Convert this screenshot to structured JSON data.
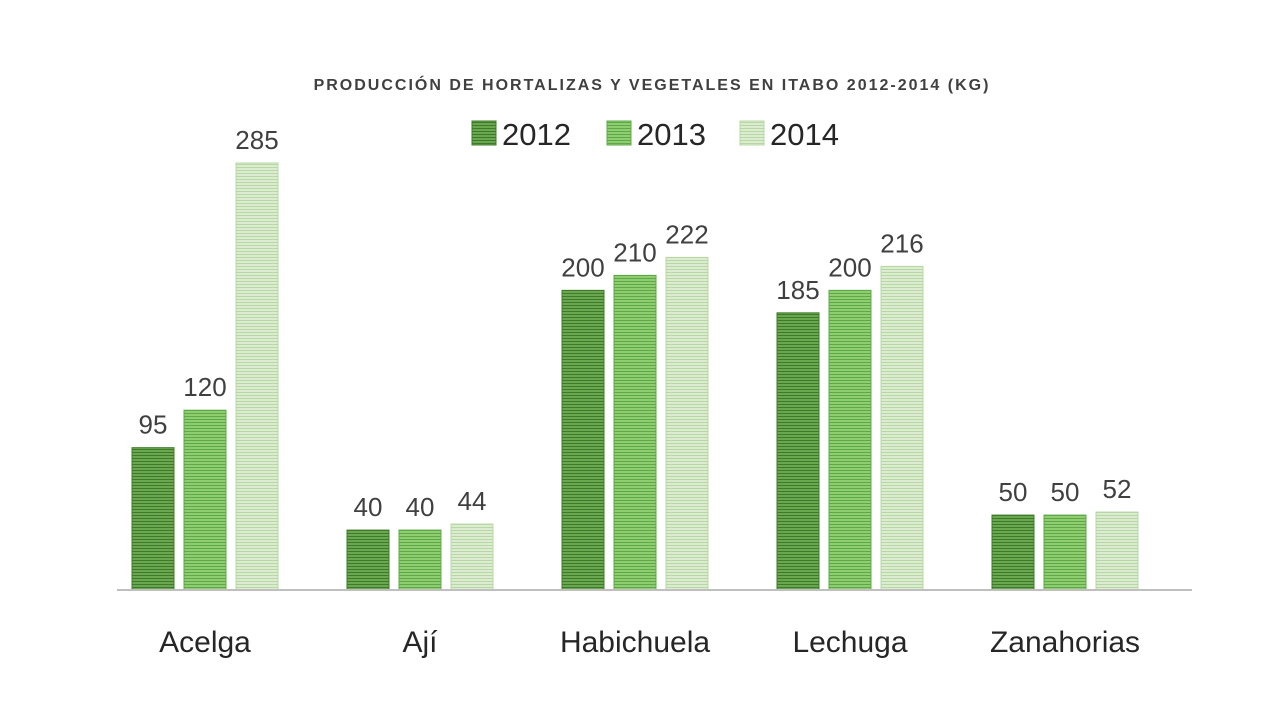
{
  "chart_data": {
    "type": "bar",
    "title": "PRODUCCIÓN DE HORTALIZAS Y VEGETALES EN ITABO 2012-2014 (KG)",
    "xlabel": "",
    "ylabel": "",
    "categories": [
      "Acelga",
      "Ají",
      "Habichuela",
      "Lechuga",
      "Zanahorias"
    ],
    "series": [
      {
        "name": "2012",
        "values": [
          95,
          40,
          200,
          185,
          50
        ],
        "color": "#6aa84f"
      },
      {
        "name": "2013",
        "values": [
          120,
          40,
          210,
          200,
          50
        ],
        "color": "#8fce6f"
      },
      {
        "name": "2014",
        "values": [
          285,
          44,
          222,
          216,
          52
        ],
        "color": "#cfe6c0"
      }
    ],
    "ylim": [
      0,
      285
    ],
    "grid": false,
    "legend_position": "top"
  }
}
